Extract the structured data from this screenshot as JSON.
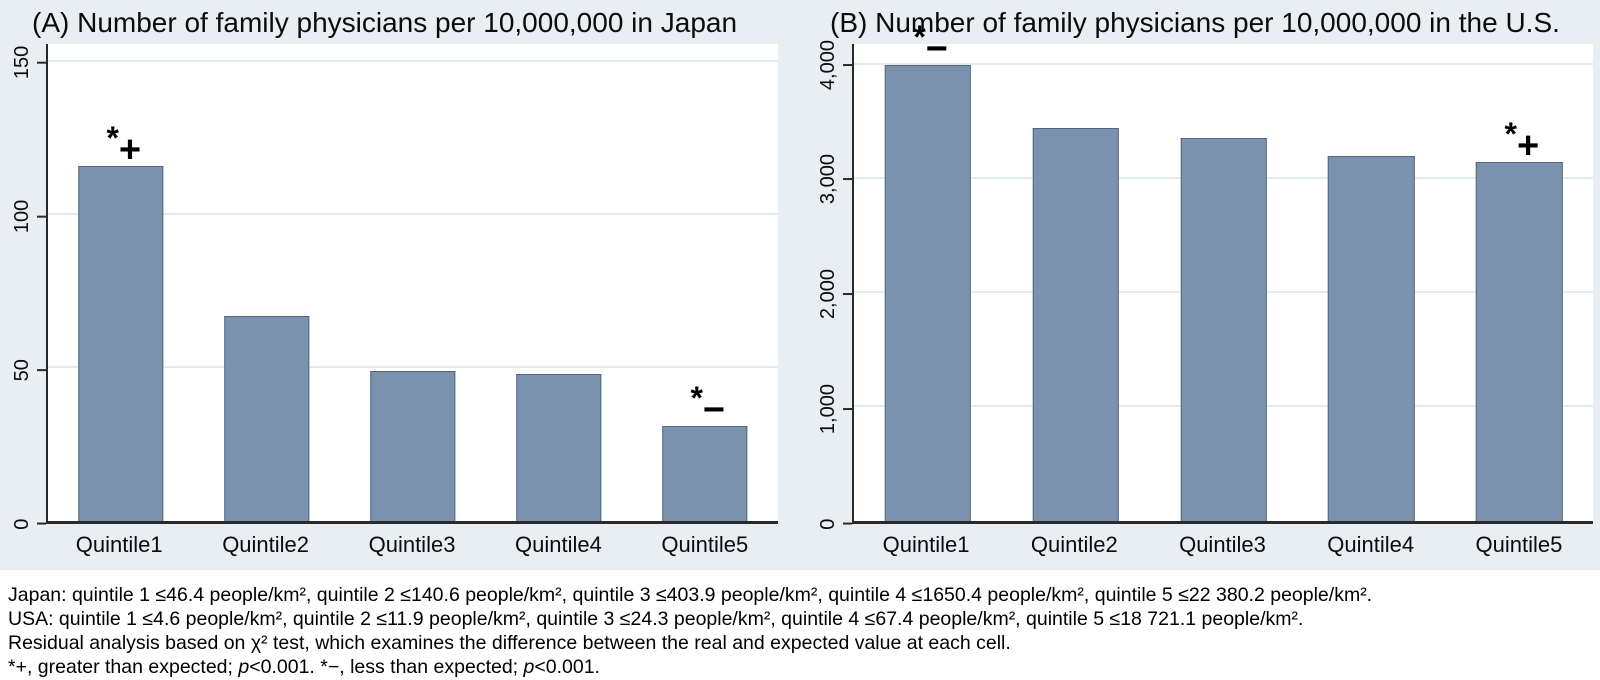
{
  "figure": {
    "background_color": "#e9eef2",
    "plot_background": "#ffffff",
    "bar_color": "#7b92ae",
    "bar_border_color": "#53687f",
    "gridline_color": "#e2eaf0",
    "axis_color": "#2a2a2a"
  },
  "chart_data": [
    {
      "type": "bar",
      "title": "(A) Number of family physicians per 10,000,000 in Japan",
      "categories": [
        "Quintile1",
        "Quintile2",
        "Quintile3",
        "Quintile4",
        "Quintile5"
      ],
      "values": [
        116,
        67,
        49,
        48,
        31
      ],
      "xlabel": "",
      "ylabel": "",
      "ylim": [
        0,
        156
      ],
      "yticks": [
        0,
        50,
        100,
        150
      ],
      "ytick_labels": [
        "0",
        "50",
        "100",
        "150"
      ],
      "grid": true,
      "legend": "none",
      "annotations": [
        {
          "category": "Quintile1",
          "symbol": "*",
          "sign": "+",
          "meaning": "greater than expected, p<0.001"
        },
        {
          "category": "Quintile5",
          "symbol": "*",
          "sign": "−",
          "meaning": "less than expected, p<0.001"
        }
      ]
    },
    {
      "type": "bar",
      "title": "(B) Number of family physicians per 10,000,000 in the U.S.",
      "categories": [
        "Quintile1",
        "Quintile2",
        "Quintile3",
        "Quintile4",
        "Quintile5"
      ],
      "values": [
        4000,
        3440,
        3360,
        3200,
        3150
      ],
      "xlabel": "",
      "ylabel": "",
      "ylim": [
        0,
        4180
      ],
      "yticks": [
        0,
        1000,
        2000,
        3000,
        4000
      ],
      "ytick_labels": [
        "0",
        "1,000",
        "2,000",
        "3,000",
        "4,000"
      ],
      "grid": true,
      "legend": "none",
      "annotations": [
        {
          "category": "Quintile1",
          "symbol": "*",
          "sign": "−",
          "meaning": "less than expected, p<0.001"
        },
        {
          "category": "Quintile5",
          "symbol": "*",
          "sign": "+",
          "meaning": "greater than expected, p<0.001"
        }
      ]
    }
  ],
  "footnotes": {
    "lines": [
      [
        {
          "t": "Japan: quintile 1 ≤46.4 people/km², quintile 2 ≤140.6 people/km², quintile 3 ≤403.9 people/km², quintile 4 ≤1650.4 people/km², quintile 5 ≤22 380.2 people/km².",
          "i": false
        }
      ],
      [
        {
          "t": "USA: quintile 1 ≤4.6 people/km², quintile 2 ≤11.9 people/km², quintile 3 ≤24.3 people/km², quintile 4 ≤67.4 people/km², quintile 5 ≤18 721.1 people/km².",
          "i": false
        }
      ],
      [
        {
          "t": "Residual analysis based on χ² test, which examines the difference between the real and expected value at each cell.",
          "i": false
        }
      ],
      [
        {
          "t": "*+, greater than expected; ",
          "i": false
        },
        {
          "t": "p",
          "i": true
        },
        {
          "t": "<0.001. *−, less than expected; ",
          "i": false
        },
        {
          "t": "p",
          "i": true
        },
        {
          "t": "<0.001.",
          "i": false
        }
      ]
    ]
  }
}
